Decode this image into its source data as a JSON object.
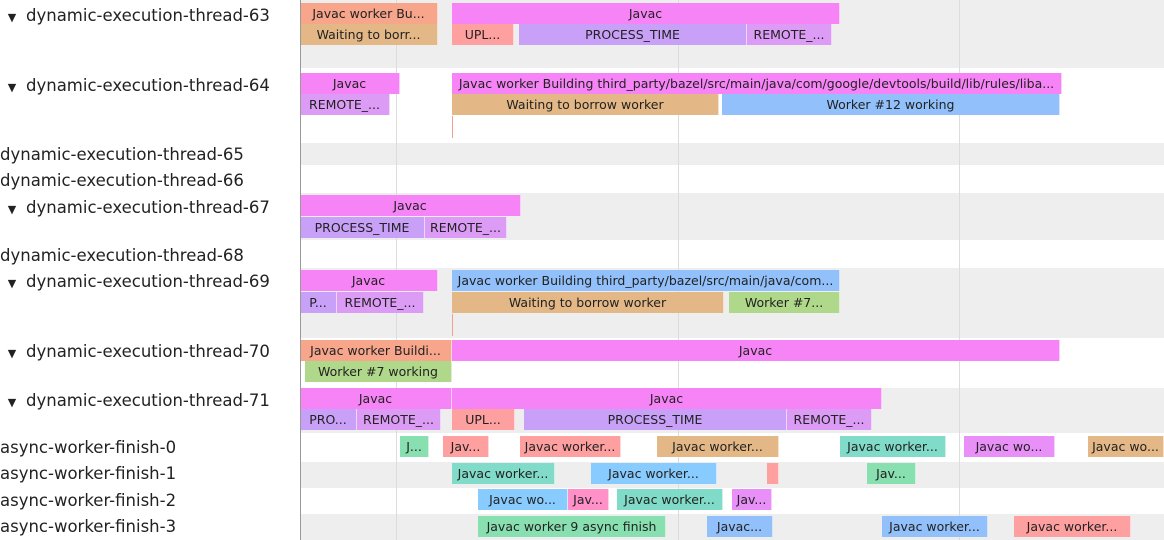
{
  "colors": {
    "javac": "#f784f7",
    "salmon": "#f7a68c",
    "tan": "#e4b886",
    "upl": "#ffa0a0",
    "process": "#c8a0f8",
    "remote": "#dc9cf6",
    "blue": "#92c0fa",
    "green": "#b0d88a",
    "teal": "#80dcc8",
    "lightblue": "#88ccff",
    "mint": "#88e0b0",
    "pink": "#ff90c8",
    "violet": "#e890f8",
    "band": "#eeeeee"
  },
  "tracks": [
    {
      "label": "dynamic-execution-thread-63",
      "expanded": true,
      "icon": "triangle-down-icon"
    },
    {
      "label": "dynamic-execution-thread-64",
      "expanded": true,
      "icon": "triangle-down-icon"
    },
    {
      "label": "dynamic-execution-thread-65",
      "expanded": false
    },
    {
      "label": "dynamic-execution-thread-66",
      "expanded": false
    },
    {
      "label": "dynamic-execution-thread-67",
      "expanded": true,
      "icon": "triangle-down-icon"
    },
    {
      "label": "dynamic-execution-thread-68",
      "expanded": false
    },
    {
      "label": "dynamic-execution-thread-69",
      "expanded": true,
      "icon": "triangle-down-icon"
    },
    {
      "label": "dynamic-execution-thread-70",
      "expanded": true,
      "icon": "triangle-down-icon"
    },
    {
      "label": "dynamic-execution-thread-71",
      "expanded": true,
      "icon": "triangle-down-icon"
    },
    {
      "label": "async-worker-finish-0",
      "expanded": false
    },
    {
      "label": "async-worker-finish-1",
      "expanded": false
    },
    {
      "label": "async-worker-finish-2",
      "expanded": false
    },
    {
      "label": "async-worker-finish-3",
      "expanded": false
    }
  ],
  "slices": [
    {
      "label": "Javac worker Bu...",
      "color": "salmon"
    },
    {
      "label": "Javac",
      "color": "javac"
    },
    {
      "label": "Waiting to borr...",
      "color": "tan"
    },
    {
      "label": "UPL...",
      "color": "upl"
    },
    {
      "label": "PROCESS_TIME",
      "color": "process"
    },
    {
      "label": "REMOTE_...",
      "color": "remote"
    },
    {
      "label": "Javac",
      "color": "javac"
    },
    {
      "label": "Javac worker Building third_party/bazel/src/main/java/com/google/devtools/build/lib/rules/liba...",
      "color": "javac"
    },
    {
      "label": "REMOTE_...",
      "color": "remote"
    },
    {
      "label": "Waiting to borrow worker",
      "color": "tan"
    },
    {
      "label": "Worker #12 working",
      "color": "blue"
    },
    {
      "label": "Javac",
      "color": "javac"
    },
    {
      "label": "PROCESS_TIME",
      "color": "process"
    },
    {
      "label": "REMOTE_...",
      "color": "remote"
    },
    {
      "label": "Javac",
      "color": "javac"
    },
    {
      "label": "Javac worker Building third_party/bazel/src/main/java/com...",
      "color": "blue"
    },
    {
      "label": "P...",
      "color": "process"
    },
    {
      "label": "REMOTE_...",
      "color": "remote"
    },
    {
      "label": "Waiting to borrow worker",
      "color": "tan"
    },
    {
      "label": "Worker #7...",
      "color": "green"
    },
    {
      "label": "Javac worker Buildi...",
      "color": "salmon"
    },
    {
      "label": "Javac",
      "color": "javac"
    },
    {
      "label": "Worker #7 working",
      "color": "green"
    },
    {
      "label": "Javac",
      "color": "javac"
    },
    {
      "label": "Javac",
      "color": "javac"
    },
    {
      "label": "PRO...",
      "color": "process"
    },
    {
      "label": "REMOTE_...",
      "color": "remote"
    },
    {
      "label": "UPL...",
      "color": "upl"
    },
    {
      "label": "PROCESS_TIME",
      "color": "process"
    },
    {
      "label": "REMOTE_...",
      "color": "remote"
    },
    {
      "label": "J...",
      "color": "mint"
    },
    {
      "label": "Jav...",
      "color": "upl"
    },
    {
      "label": "Javac worker...",
      "color": "upl"
    },
    {
      "label": "Javac worker...",
      "color": "tan"
    },
    {
      "label": "Javac worker...",
      "color": "teal"
    },
    {
      "label": "Javac wo...",
      "color": "violet"
    },
    {
      "label": "Javac wo...",
      "color": "tan"
    },
    {
      "label": "Javac worker...",
      "color": "teal"
    },
    {
      "label": "Javac worker...",
      "color": "lightblue"
    },
    {
      "label": "",
      "color": "upl"
    },
    {
      "label": "Jav...",
      "color": "mint"
    },
    {
      "label": "Javac wo...",
      "color": "lightblue"
    },
    {
      "label": "Jav...",
      "color": "pink"
    },
    {
      "label": "Javac worker...",
      "color": "teal"
    },
    {
      "label": "Jav...",
      "color": "violet"
    },
    {
      "label": "Javac worker 9 async finish",
      "color": "mint"
    },
    {
      "label": "Javac...",
      "color": "blue"
    },
    {
      "label": "Javac worker...",
      "color": "blue"
    },
    {
      "label": "Javac worker...",
      "color": "upl"
    }
  ]
}
